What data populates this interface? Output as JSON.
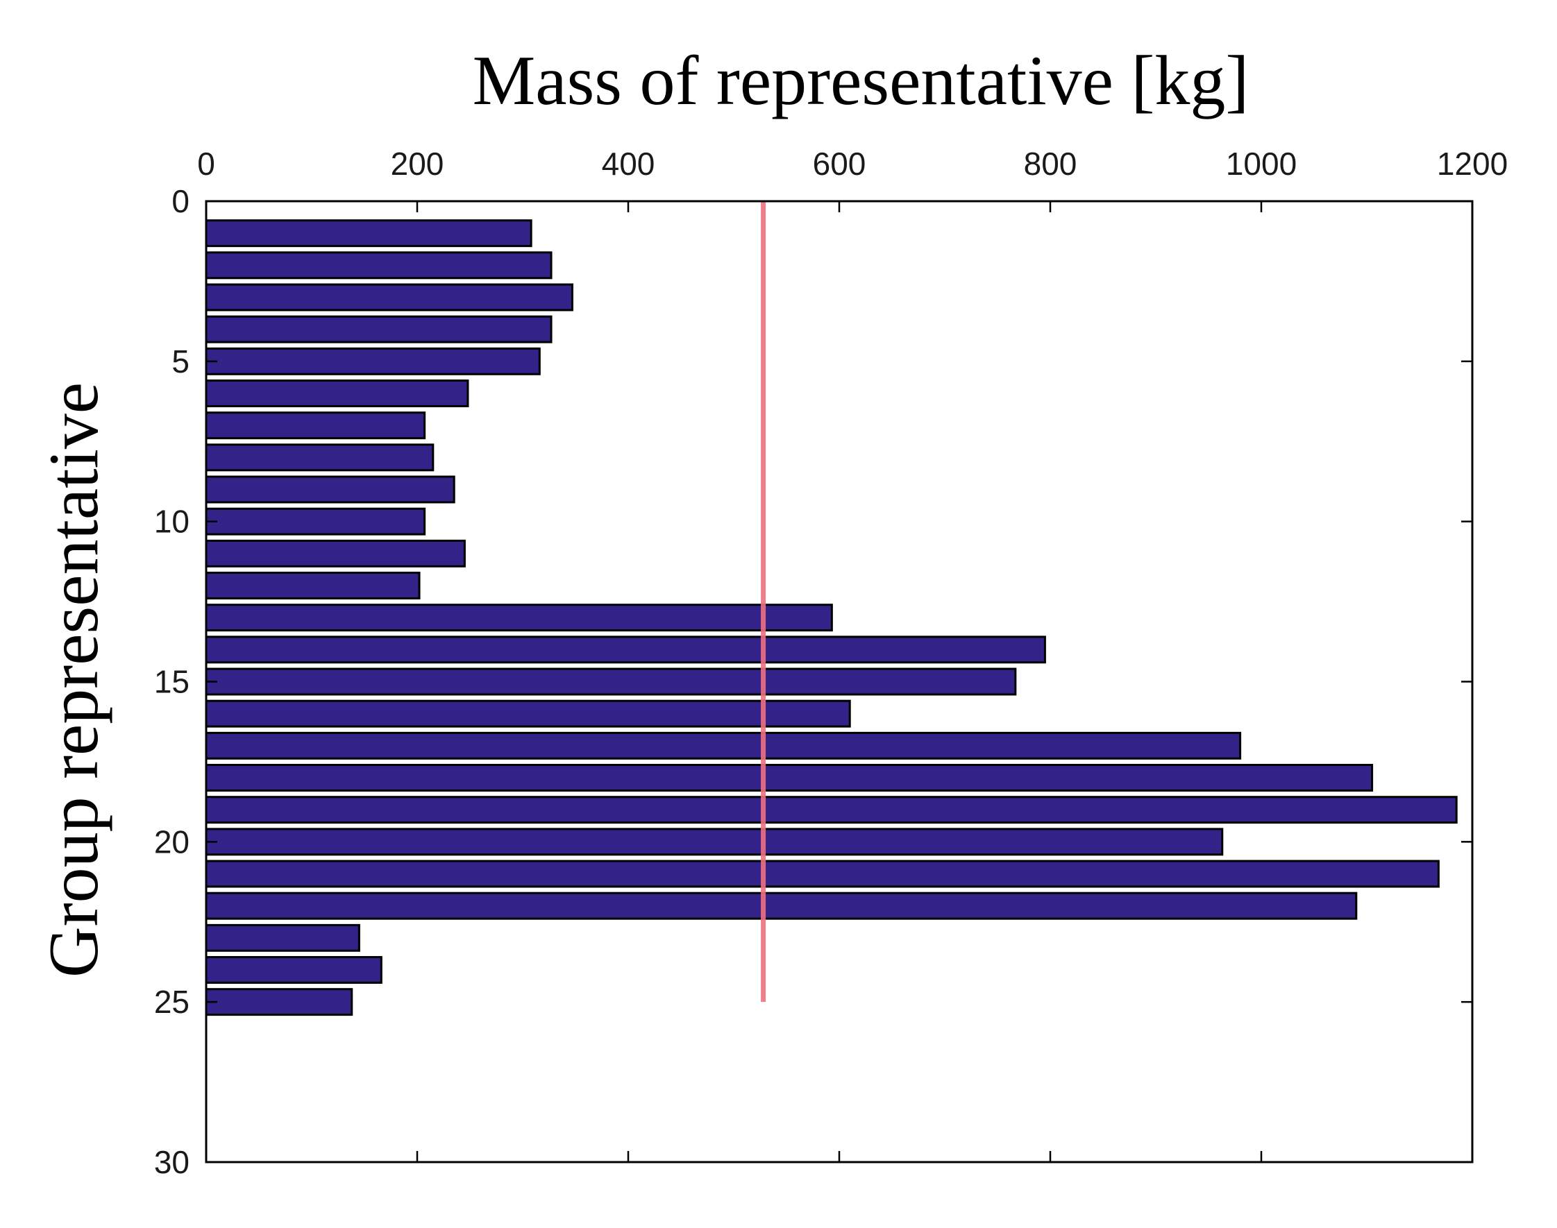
{
  "chart_data": {
    "type": "bar",
    "orientation": "horizontal",
    "title": "Mass of representative [kg]",
    "xlabel": "Mass of representative [kg]",
    "ylabel": "Group representative",
    "xlim": [
      0,
      1200
    ],
    "ylim": [
      0,
      30
    ],
    "y_reversed": true,
    "x_axis_position": "top",
    "x_ticks": [
      "0",
      "200",
      "400",
      "600",
      "800",
      "1000",
      "1200"
    ],
    "y_ticks": [
      "0",
      "5",
      "10",
      "15",
      "20",
      "25",
      "30"
    ],
    "categories": [
      1,
      2,
      3,
      4,
      5,
      6,
      7,
      8,
      9,
      10,
      11,
      12,
      13,
      14,
      15,
      16,
      17,
      18,
      19,
      20,
      21,
      22,
      23,
      24,
      25
    ],
    "values": [
      308,
      327,
      347,
      327,
      316,
      248,
      207,
      215,
      235,
      207,
      245,
      202,
      593,
      795,
      767,
      610,
      980,
      1105,
      1185,
      963,
      1168,
      1090,
      145,
      166,
      138
    ],
    "reference_line": {
      "x": 528,
      "y_range": [
        0,
        25
      ],
      "color": "#f07080"
    },
    "grid": false,
    "bar_color": "#332288",
    "bar_edge_color": "#000000"
  }
}
